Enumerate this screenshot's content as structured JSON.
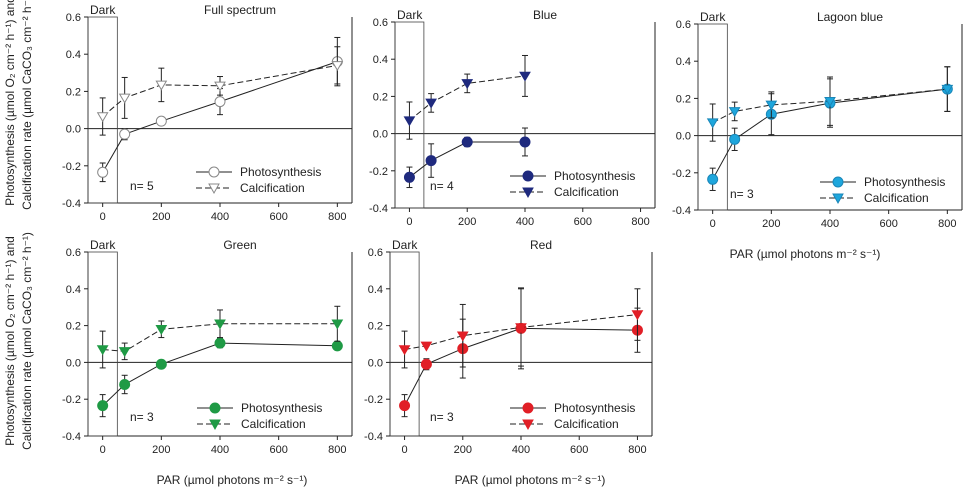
{
  "figure": {
    "ylabel_left_line1": "Photosynthesis (µmol O₂ cm⁻² h⁻¹) and",
    "ylabel_left_line2": "Calcification rate (µmol CaCO₃ cm⁻² h⁻¹)",
    "xlabel": "PAR (µmol photons m⁻² s⁻¹)",
    "dark_label": "Dark",
    "legend_photosynthesis": "Photosynthesis",
    "legend_calcification": "Calcification"
  },
  "chart_data": [
    {
      "type": "line",
      "title": "Full spectrum",
      "color": "#ffffff",
      "stroke": "#888888",
      "n_label": "n= 5",
      "x_ticks": [
        "0",
        "200",
        "400",
        "600",
        "800"
      ],
      "y_ticks": [
        "-0.4",
        "-0.2",
        "0.0",
        "0.2",
        "0.4",
        "0.6"
      ],
      "xlim": [
        -50,
        850
      ],
      "ylim": [
        -0.4,
        0.6
      ],
      "x": [
        0,
        75,
        200,
        400,
        800
      ],
      "series": [
        {
          "name": "Photosynthesis",
          "values": [
            -0.235,
            -0.03,
            0.04,
            0.145,
            0.36
          ],
          "err": [
            0.05,
            0.03,
            0.01,
            0.07,
            0.13
          ]
        },
        {
          "name": "Calcification",
          "values": [
            0.065,
            0.165,
            0.235,
            0.23,
            0.34
          ],
          "err": [
            0.1,
            0.11,
            0.09,
            0.05,
            0.1
          ]
        }
      ]
    },
    {
      "type": "line",
      "title": "Blue",
      "color": "#1f2a7e",
      "stroke": "#1f2a7e",
      "n_label": "n= 4",
      "x_ticks": [
        "0",
        "200",
        "400",
        "600",
        "800"
      ],
      "y_ticks": [
        "-0.4",
        "-0.2",
        "0.0",
        "0.2",
        "0.4",
        "0.6"
      ],
      "xlim": [
        -50,
        850
      ],
      "ylim": [
        -0.4,
        0.6
      ],
      "x": [
        0,
        75,
        200,
        400
      ],
      "series": [
        {
          "name": "Photosynthesis",
          "values": [
            -0.235,
            -0.145,
            -0.045,
            -0.045
          ],
          "err": [
            0.055,
            0.09,
            0.025,
            0.075
          ]
        },
        {
          "name": "Calcification",
          "values": [
            0.07,
            0.165,
            0.27,
            0.31
          ],
          "err": [
            0.1,
            0.05,
            0.05,
            0.11
          ]
        }
      ]
    },
    {
      "type": "line",
      "title": "Lagoon blue",
      "color": "#1ea6dc",
      "stroke": "#1a86b8",
      "n_label": "n= 3",
      "x_ticks": [
        "0",
        "200",
        "400",
        "600",
        "800"
      ],
      "y_ticks": [
        "-0.4",
        "-0.2",
        "0.0",
        "0.2",
        "0.4",
        "0.6"
      ],
      "xlim": [
        -50,
        850
      ],
      "ylim": [
        -0.4,
        0.6
      ],
      "x": [
        0,
        75,
        200,
        400,
        800
      ],
      "series": [
        {
          "name": "Photosynthesis",
          "values": [
            -0.235,
            -0.02,
            0.115,
            0.175,
            0.25
          ],
          "err": [
            0.06,
            0.06,
            0.11,
            0.13,
            0.12
          ]
        },
        {
          "name": "Calcification",
          "values": [
            0.07,
            0.13,
            0.165,
            0.185,
            0.25
          ],
          "err": [
            0.1,
            0.05,
            0.07,
            0.13,
            0.12
          ]
        }
      ]
    },
    {
      "type": "line",
      "title": "Green",
      "color": "#1f9a45",
      "stroke": "#1f9a45",
      "n_label": "n= 3",
      "x_ticks": [
        "0",
        "200",
        "400",
        "600",
        "800"
      ],
      "y_ticks": [
        "-0.4",
        "-0.2",
        "0.0",
        "0.2",
        "0.4",
        "0.6"
      ],
      "xlim": [
        -50,
        850
      ],
      "ylim": [
        -0.4,
        0.6
      ],
      "x": [
        0,
        75,
        200,
        400,
        800
      ],
      "series": [
        {
          "name": "Photosynthesis",
          "values": [
            -0.235,
            -0.12,
            -0.01,
            0.105,
            0.09
          ],
          "err": [
            0.06,
            0.05,
            0.0,
            0.025,
            0.0
          ]
        },
        {
          "name": "Calcification",
          "values": [
            0.07,
            0.06,
            0.18,
            0.21,
            0.21
          ],
          "err": [
            0.1,
            0.045,
            0.045,
            0.075,
            0.095
          ]
        }
      ]
    },
    {
      "type": "line",
      "title": "Red",
      "color": "#e11f26",
      "stroke": "#e11f26",
      "n_label": "n= 3",
      "x_ticks": [
        "0",
        "200",
        "400",
        "600",
        "800"
      ],
      "y_ticks": [
        "-0.4",
        "-0.2",
        "0.0",
        "0.2",
        "0.4",
        "0.6"
      ],
      "xlim": [
        -50,
        850
      ],
      "ylim": [
        -0.4,
        0.6
      ],
      "x": [
        0,
        75,
        200,
        400,
        800
      ],
      "series": [
        {
          "name": "Photosynthesis",
          "values": [
            -0.235,
            -0.01,
            0.075,
            0.185,
            0.175
          ],
          "err": [
            0.06,
            0.03,
            0.16,
            0.22,
            0.12
          ]
        },
        {
          "name": "Calcification",
          "values": [
            0.07,
            0.09,
            0.145,
            0.19,
            0.26
          ],
          "err": [
            0.1,
            0.0,
            0.17,
            0.21,
            0.14
          ]
        }
      ]
    }
  ]
}
